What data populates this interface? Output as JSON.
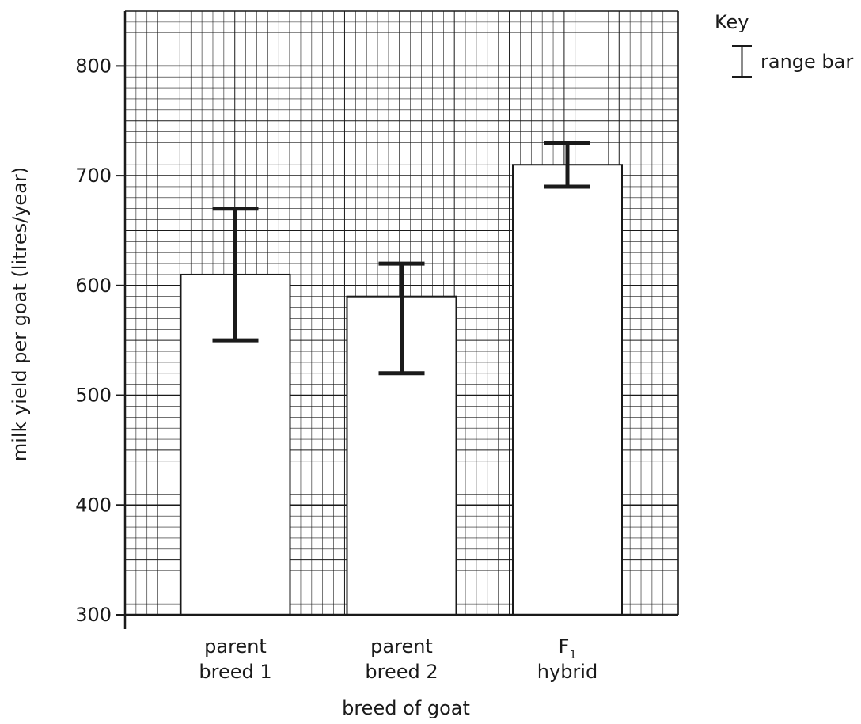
{
  "chart_data": {
    "type": "bar",
    "xlabel": "breed of goat",
    "ylabel": "milk yield per goat (litres/year)",
    "ylim": [
      300,
      850
    ],
    "yticks": [
      300,
      400,
      500,
      600,
      700,
      800
    ],
    "grid": true,
    "categories": [
      {
        "line1": "parent",
        "line2": "breed 1",
        "subscript": ""
      },
      {
        "line1": "parent",
        "line2": "breed 2",
        "subscript": ""
      },
      {
        "line1": "F",
        "line2": "hybrid",
        "subscript": "1"
      }
    ],
    "values": [
      610,
      590,
      710
    ],
    "range_min": [
      550,
      520,
      690
    ],
    "range_max": [
      670,
      620,
      730
    ],
    "legend": {
      "title": "Key",
      "entry": "range bar",
      "placement": "top-right"
    }
  }
}
